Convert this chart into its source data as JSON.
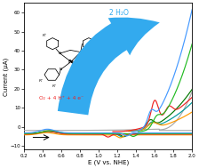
{
  "title": "",
  "xlabel": "E (V vs. NHE)",
  "ylabel": "Current (μA)",
  "xlim": [
    0.2,
    2.0
  ],
  "ylim": [
    -12,
    65
  ],
  "xticks": [
    0.2,
    0.4,
    0.6,
    0.8,
    1.0,
    1.2,
    1.4,
    1.6,
    1.8,
    2.0
  ],
  "yticks": [
    -10,
    0,
    10,
    20,
    30,
    40,
    50,
    60
  ],
  "colors": {
    "blue": "#4499FF",
    "green": "#22BB22",
    "red": "#EE2222",
    "orange": "#FF9900",
    "dark_green": "#007700",
    "teal": "#009999",
    "gray": "#AAAAAA",
    "black": "#000000",
    "arrow_blue": "#33AAEE"
  },
  "annotation_h2o": "2 H₂O",
  "annotation_o2": "O₂ + 4 H⁺ + 4 e⁻",
  "background_color": "#ffffff"
}
